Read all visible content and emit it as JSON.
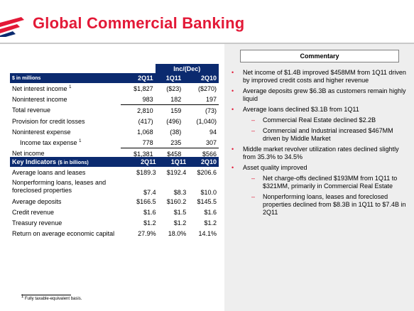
{
  "header": {
    "title": "Global Commercial Banking"
  },
  "financials": {
    "group_label": "Inc/(Dec)",
    "unit_label": "$ in millions",
    "columns": [
      "2Q11",
      "1Q11",
      "2Q10"
    ],
    "rows": [
      {
        "label": "Net interest income",
        "note": "1",
        "values": [
          "$1,827",
          "($23)",
          "($270)"
        ]
      },
      {
        "label": "Noninterest income",
        "values": [
          "983",
          "182",
          "197"
        ]
      },
      {
        "label": "Total revenue",
        "values": [
          "2,810",
          "159",
          "(73)"
        ]
      },
      {
        "label": "Provision for credit losses",
        "values": [
          "(417)",
          "(496)",
          "(1,040)"
        ]
      },
      {
        "label": "Noninterest expense",
        "values": [
          "1,068",
          "(38)",
          "94"
        ]
      },
      {
        "label": "Income tax expense",
        "note": "1",
        "values": [
          "778",
          "235",
          "307"
        ]
      },
      {
        "label": "Net income",
        "values": [
          "$1,381",
          "$458",
          "$566"
        ]
      }
    ]
  },
  "key_indicators": {
    "title": "Key Indicators",
    "unit": "($ in billions)",
    "columns": [
      "2Q11",
      "1Q11",
      "2Q10"
    ],
    "rows": [
      {
        "label": "Average loans and leases",
        "values": [
          "$189.3",
          "$192.4",
          "$206.6"
        ]
      },
      {
        "label": "Nonperforming loans, leases and foreclosed properties",
        "values": [
          "$7.4",
          "$8.3",
          "$10.0"
        ]
      },
      {
        "label": "Average deposits",
        "values": [
          "$166.5",
          "$160.2",
          "$145.5"
        ]
      },
      {
        "label": "Credit revenue",
        "values": [
          "$1.6",
          "$1.5",
          "$1.6"
        ]
      },
      {
        "label": "Treasury revenue",
        "values": [
          "$1.2",
          "$1.2",
          "$1.2"
        ]
      },
      {
        "label": "Return on average economic capital",
        "values": [
          "27.9%",
          "18.0%",
          "14.1%"
        ]
      }
    ]
  },
  "commentary": {
    "title": "Commentary",
    "b1": "Net income of $1.4B improved $458MM from 1Q11 driven by improved credit costs and higher revenue",
    "b2": "Average deposits grew $6.3B as customers remain highly liquid",
    "b3": "Average loans declined $3.1B from 1Q11",
    "b3s1": "Commercial Real Estate declined $2.2B",
    "b3s2": "Commercial and Industrial increased $467MM driven by Middle Market",
    "b4": "Middle market revolver utilization rates declined slightly from 35.3% to 34.5%",
    "b5": "Asset quality improved",
    "b5s1": "Net charge-offs declined $193MM from 1Q11 to $321MM, primarily in Commercial Real Estate",
    "b5s2": "Nonperforming loans, leases and foreclosed properties declined from $8.3B in 1Q11 to $7.4B in 2Q11"
  },
  "footnote": {
    "marker": "1",
    "text": "Fully taxable-equivalent basis."
  },
  "colors": {
    "brand_red": "#e31937",
    "navy": "#0b2a6f",
    "panel_gray": "#eeeeee"
  },
  "icons": {
    "logo": "flag-stripes-logo",
    "bullet": "bullet-dot",
    "sub_bullet": "dash"
  }
}
